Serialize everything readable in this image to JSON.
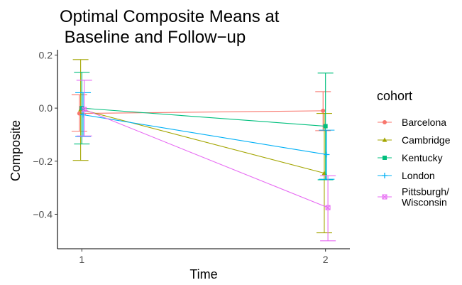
{
  "chart_data": {
    "type": "line",
    "title_lines": [
      "Optimal Composite Means at",
      " Baseline and Follow−up"
    ],
    "xlabel": "Time",
    "ylabel": "Composite",
    "x": [
      1,
      2
    ],
    "x_ticks": [
      "1",
      "2"
    ],
    "y_ticks": [
      {
        "value": 0.2,
        "label": "0.2"
      },
      {
        "value": 0.0,
        "label": "0.0"
      },
      {
        "value": -0.2,
        "label": "−0.2"
      },
      {
        "value": -0.4,
        "label": "−0.4"
      }
    ],
    "ylim": [
      -0.53,
      0.22
    ],
    "xlim": [
      0.9,
      2.1
    ],
    "grid": false,
    "legend_placement": "right",
    "legend_title": "cohort",
    "series": [
      {
        "name": "Barcelona",
        "legend_lines": [
          "Barcelona"
        ],
        "color": "#F8766D",
        "marker": "circle",
        "values": [
          -0.02,
          -0.01
        ],
        "lower": [
          -0.087,
          -0.085
        ],
        "upper": [
          0.05,
          0.062
        ],
        "x_offset": [
          -0.01,
          -0.01
        ]
      },
      {
        "name": "Cambridge",
        "legend_lines": [
          "Cambridge"
        ],
        "color": "#A3A500",
        "marker": "triangle",
        "values": [
          -0.005,
          -0.245
        ],
        "lower": [
          -0.197,
          -0.47
        ],
        "upper": [
          0.183,
          -0.02
        ],
        "x_offset": [
          -0.005,
          -0.005
        ]
      },
      {
        "name": "Kentucky",
        "legend_lines": [
          "Kentucky"
        ],
        "color": "#00BF7D",
        "marker": "square",
        "values": [
          0.0,
          -0.068
        ],
        "lower": [
          -0.135,
          -0.27
        ],
        "upper": [
          0.135,
          0.132
        ],
        "x_offset": [
          0.0,
          0.0
        ]
      },
      {
        "name": "London",
        "legend_lines": [
          "London"
        ],
        "color": "#00B0F6",
        "marker": "plus",
        "values": [
          -0.025,
          -0.175
        ],
        "lower": [
          -0.107,
          -0.268
        ],
        "upper": [
          0.058,
          -0.083
        ],
        "x_offset": [
          0.005,
          0.005
        ]
      },
      {
        "name": "Pittsburgh/ Wisconsin",
        "legend_lines": [
          "Pittsburgh/",
          "Wisconsin"
        ],
        "color": "#E76BF3",
        "marker": "square-x",
        "values": [
          -0.005,
          -0.375
        ],
        "lower": [
          -0.105,
          -0.5
        ],
        "upper": [
          0.105,
          -0.255
        ],
        "x_offset": [
          0.01,
          0.01
        ]
      }
    ]
  }
}
